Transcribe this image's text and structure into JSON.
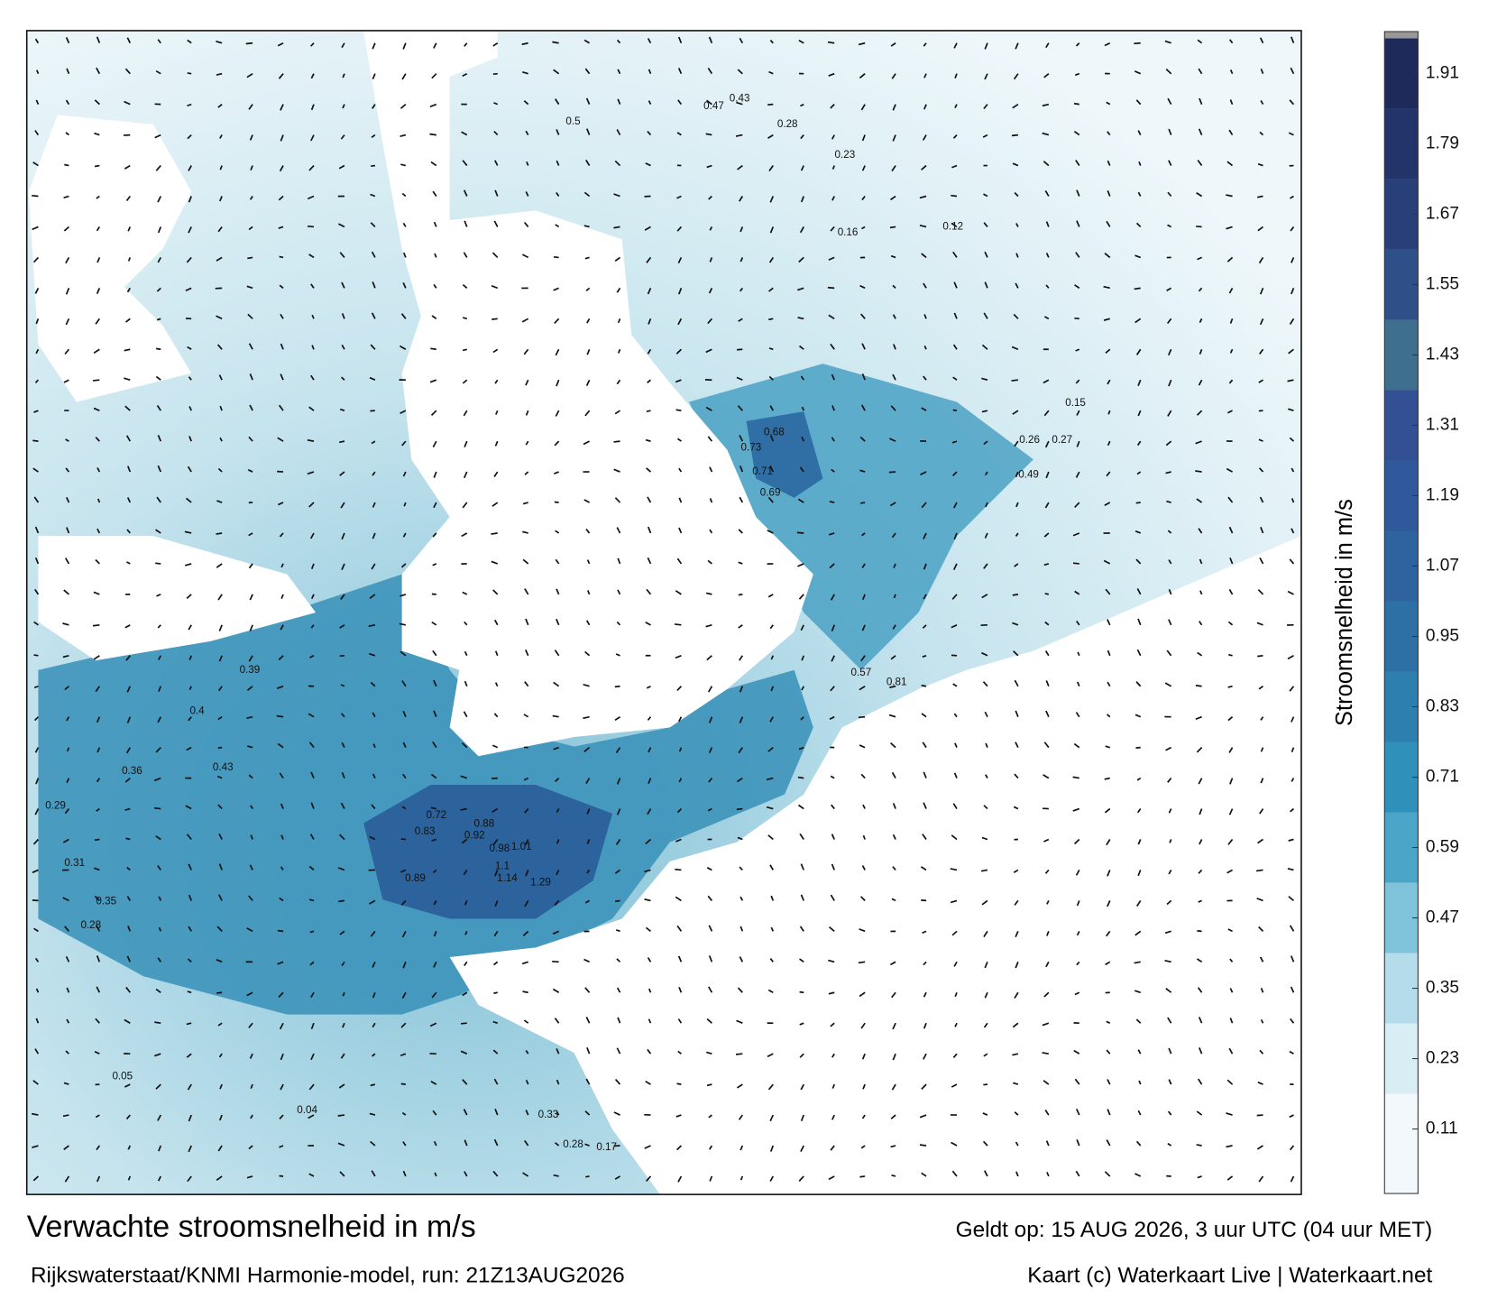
{
  "map": {
    "title": "Verwachte stroomsnelheid in m/s",
    "valid_time": "Geldt op: 15 AUG 2026, 3 uur UTC (04 uur MET)",
    "source": "Rijkswaterstaat/KNMI Harmonie-model, run: 21Z13AUG2026",
    "credit": "Kaart (c) Waterkaart Live | Waterkaart.net",
    "speed_labels": [
      1.29,
      1.14,
      1.1,
      1.01,
      0.98,
      0.92,
      0.88,
      0.83,
      0.89,
      0.72,
      0.73,
      0.71,
      0.69,
      0.68,
      0.57,
      0.81,
      0.43,
      0.4,
      0.39,
      0.36,
      0.35,
      0.31,
      0.29,
      0.28,
      0.5,
      0.47,
      0.43,
      0.28,
      0.16,
      0.23,
      0.12,
      0.49,
      0.26,
      0.27,
      0.15,
      0.33,
      0.28,
      0.17,
      0.05,
      0.04
    ]
  },
  "colorbar": {
    "label": "Stroomsnelheid in m/s",
    "lim": [
      0,
      1.97
    ],
    "ticks": [
      0.11,
      0.23,
      0.35,
      0.47,
      0.59,
      0.71,
      0.83,
      0.95,
      1.07,
      1.19,
      1.31,
      1.43,
      1.55,
      1.67,
      1.79,
      1.91
    ]
  }
}
